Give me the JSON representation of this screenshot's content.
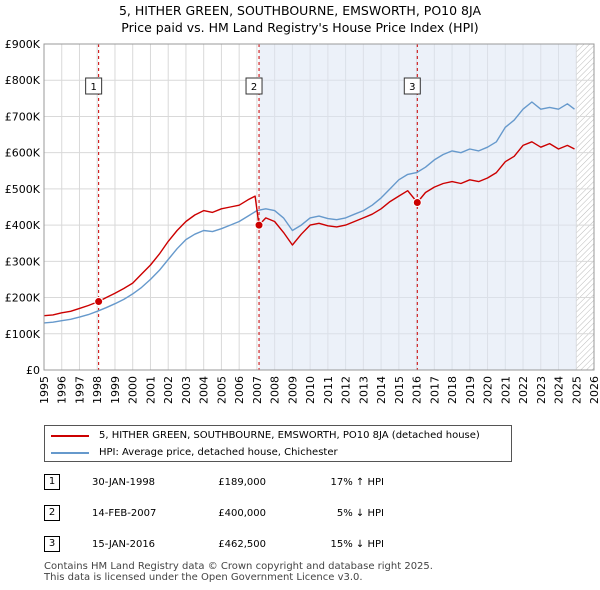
{
  "header": {
    "title": "5, HITHER GREEN, SOUTHBOURNE, EMSWORTH, PO10 8JA",
    "subtitle": "Price paid vs. HM Land Registry's House Price Index (HPI)"
  },
  "chart_data": {
    "type": "line",
    "title": "5, HITHER GREEN, SOUTHBOURNE, EMSWORTH, PO10 8JA",
    "subtitle": "Price paid vs. HM Land Registry's House Price Index (HPI)",
    "xlabel": "",
    "ylabel": "",
    "xlim": [
      1995,
      2026
    ],
    "ylim": [
      0,
      900000
    ],
    "x_ticks": [
      "1995",
      "1996",
      "1997",
      "1998",
      "1999",
      "2000",
      "2001",
      "2002",
      "2003",
      "2004",
      "2005",
      "2006",
      "2007",
      "2008",
      "2009",
      "2010",
      "2011",
      "2012",
      "2013",
      "2014",
      "2015",
      "2016",
      "2017",
      "2018",
      "2019",
      "2020",
      "2021",
      "2022",
      "2023",
      "2024",
      "2025",
      "2026"
    ],
    "y_ticks": [
      {
        "value": 0,
        "label": "£0"
      },
      {
        "value": 100000,
        "label": "£100K"
      },
      {
        "value": 200000,
        "label": "£200K"
      },
      {
        "value": 300000,
        "label": "£300K"
      },
      {
        "value": 400000,
        "label": "£400K"
      },
      {
        "value": 500000,
        "label": "£500K"
      },
      {
        "value": 600000,
        "label": "£600K"
      },
      {
        "value": 700000,
        "label": "£700K"
      },
      {
        "value": 800000,
        "label": "£800K"
      },
      {
        "value": 900000,
        "label": "£900K"
      }
    ],
    "grid": true,
    "projection_start": 2025.0,
    "series": [
      {
        "name": "5, HITHER GREEN, SOUTHBOURNE, EMSWORTH, PO10 8JA (detached house)",
        "color": "#cc0000",
        "x": [
          1995.0,
          1995.5,
          1996.0,
          1996.5,
          1997.0,
          1997.5,
          1998.08,
          1998.5,
          1999.0,
          1999.5,
          2000.0,
          2000.5,
          2001.0,
          2001.5,
          2002.0,
          2002.5,
          2003.0,
          2003.5,
          2004.0,
          2004.5,
          2005.0,
          2005.5,
          2006.0,
          2006.5,
          2006.9,
          2007.12,
          2007.5,
          2008.0,
          2008.5,
          2009.0,
          2009.5,
          2010.0,
          2010.5,
          2011.0,
          2011.5,
          2012.0,
          2012.5,
          2013.0,
          2013.5,
          2014.0,
          2014.5,
          2015.0,
          2015.5,
          2016.04,
          2016.5,
          2017.0,
          2017.5,
          2018.0,
          2018.5,
          2019.0,
          2019.5,
          2020.0,
          2020.5,
          2021.0,
          2021.5,
          2022.0,
          2022.5,
          2023.0,
          2023.5,
          2024.0,
          2024.5,
          2024.9
        ],
        "values": [
          150000,
          152000,
          158000,
          162000,
          170000,
          178000,
          189000,
          200000,
          212000,
          225000,
          240000,
          265000,
          290000,
          320000,
          355000,
          385000,
          410000,
          428000,
          440000,
          435000,
          445000,
          450000,
          455000,
          470000,
          480000,
          400000,
          420000,
          410000,
          380000,
          345000,
          375000,
          400000,
          405000,
          398000,
          395000,
          400000,
          410000,
          420000,
          430000,
          445000,
          465000,
          480000,
          495000,
          462500,
          490000,
          505000,
          515000,
          520000,
          515000,
          525000,
          520000,
          530000,
          545000,
          575000,
          590000,
          620000,
          630000,
          615000,
          625000,
          610000,
          620000,
          610000
        ]
      },
      {
        "name": "HPI: Average price, detached house, Chichester",
        "color": "#6699cc",
        "x": [
          1995.0,
          1995.5,
          1996.0,
          1996.5,
          1997.0,
          1997.5,
          1998.0,
          1998.5,
          1999.0,
          1999.5,
          2000.0,
          2000.5,
          2001.0,
          2001.5,
          2002.0,
          2002.5,
          2003.0,
          2003.5,
          2004.0,
          2004.5,
          2005.0,
          2005.5,
          2006.0,
          2006.5,
          2007.0,
          2007.5,
          2008.0,
          2008.5,
          2009.0,
          2009.5,
          2010.0,
          2010.5,
          2011.0,
          2011.5,
          2012.0,
          2012.5,
          2013.0,
          2013.5,
          2014.0,
          2014.5,
          2015.0,
          2015.5,
          2016.0,
          2016.5,
          2017.0,
          2017.5,
          2018.0,
          2018.5,
          2019.0,
          2019.5,
          2020.0,
          2020.5,
          2021.0,
          2021.5,
          2022.0,
          2022.5,
          2023.0,
          2023.5,
          2024.0,
          2024.5,
          2024.9
        ],
        "values": [
          130000,
          132000,
          136000,
          140000,
          146000,
          153000,
          162000,
          172000,
          183000,
          195000,
          210000,
          228000,
          250000,
          275000,
          305000,
          335000,
          360000,
          375000,
          385000,
          382000,
          390000,
          400000,
          410000,
          425000,
          440000,
          445000,
          440000,
          420000,
          385000,
          400000,
          420000,
          425000,
          418000,
          415000,
          420000,
          430000,
          440000,
          455000,
          475000,
          500000,
          525000,
          540000,
          545000,
          560000,
          580000,
          595000,
          605000,
          600000,
          610000,
          605000,
          615000,
          630000,
          670000,
          690000,
          720000,
          740000,
          720000,
          725000,
          720000,
          735000,
          720000
        ]
      }
    ],
    "transactions": [
      {
        "marker": "1",
        "date": "30-JAN-1998",
        "x": 1998.08,
        "price": "£189,000",
        "value": 189000,
        "hpi": "17% ↑ HPI"
      },
      {
        "marker": "2",
        "date": "14-FEB-2007",
        "x": 2007.12,
        "price": "£400,000",
        "value": 400000,
        "hpi": "5% ↓ HPI"
      },
      {
        "marker": "3",
        "date": "15-JAN-2016",
        "x": 2016.04,
        "price": "£462,500",
        "value": 462500,
        "hpi": "15% ↓ HPI"
      }
    ]
  },
  "legend": {
    "items": [
      {
        "label": "5, HITHER GREEN, SOUTHBOURNE, EMSWORTH, PO10 8JA (detached house)",
        "color": "#cc0000"
      },
      {
        "label": "HPI: Average price, detached house, Chichester",
        "color": "#6699cc"
      }
    ]
  },
  "footer": {
    "line1": "Contains HM Land Registry data © Crown copyright and database right 2025.",
    "line2": "This data is licensed under the Open Government Licence v3.0."
  }
}
